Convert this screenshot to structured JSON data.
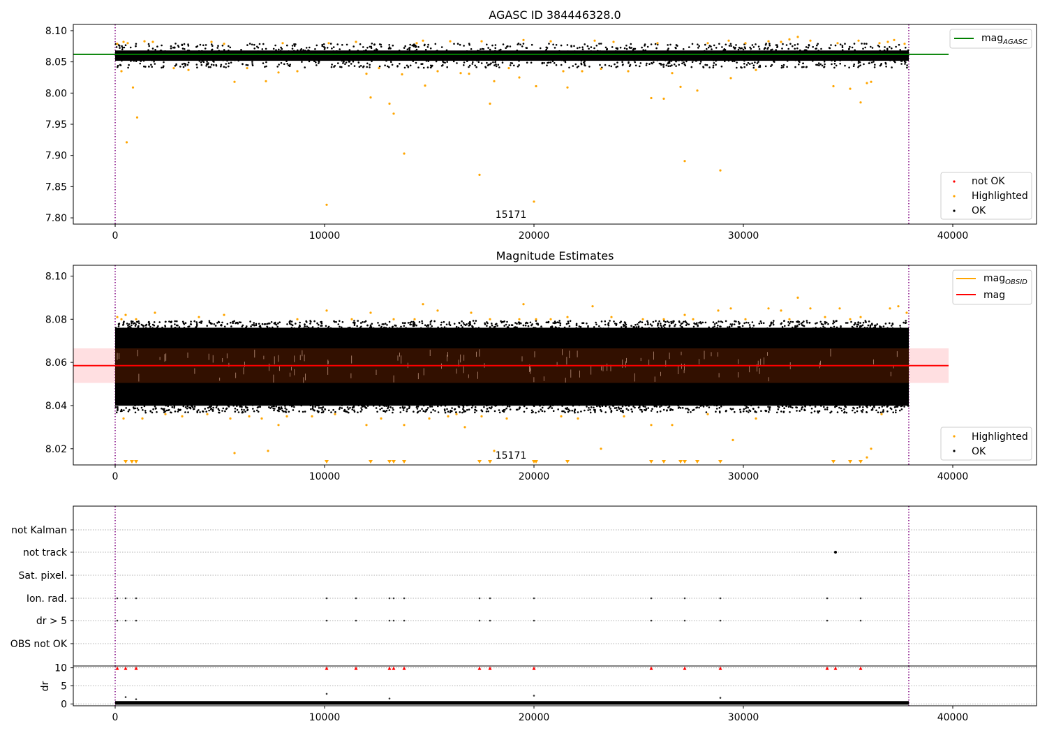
{
  "chart_data": [
    {
      "type": "scatter",
      "title": "AGASC ID 384446328.0",
      "xlim": [
        -2000,
        44000
      ],
      "ylim": [
        7.79,
        8.11
      ],
      "xticks": [
        0,
        10000,
        20000,
        30000,
        40000
      ],
      "yticks": [
        7.8,
        7.85,
        7.9,
        7.95,
        8.0,
        8.05,
        8.1
      ],
      "ytick_labels": [
        "7.80",
        "7.85",
        "7.90",
        "7.95",
        "8.00",
        "8.05",
        "8.10"
      ],
      "annotation": {
        "text": "15171",
        "x": 19000,
        "y": 7.8
      },
      "vlines": [
        0,
        37900
      ],
      "hline": {
        "name": "mag",
        "subscript": "AGASC",
        "value": 8.062,
        "x_range": [
          -2000,
          39800
        ],
        "color": "#008000"
      },
      "legend_lines": [
        {
          "name": "mag",
          "subscript": "AGASC",
          "color": "#008000"
        }
      ],
      "legend_points": [
        {
          "name": "not OK",
          "color": "#ff0000"
        },
        {
          "name": "Highlighted",
          "color": "#ffa500"
        },
        {
          "name": "OK",
          "color": "#000000"
        }
      ],
      "ok_band": {
        "x_range": [
          0,
          37900
        ],
        "y_range": [
          8.045,
          8.075
        ],
        "color": "#000000"
      },
      "highlighted_points": [
        [
          100,
          8.079
        ],
        [
          400,
          8.082
        ],
        [
          600,
          8.08
        ],
        [
          850,
          8.009
        ],
        [
          1050,
          7.961
        ],
        [
          550,
          7.921
        ],
        [
          300,
          8.035
        ],
        [
          1400,
          8.083
        ],
        [
          1800,
          8.082
        ],
        [
          2800,
          8.04
        ],
        [
          3500,
          8.037
        ],
        [
          4600,
          8.082
        ],
        [
          5200,
          8.079
        ],
        [
          5700,
          8.018
        ],
        [
          6300,
          8.04
        ],
        [
          7200,
          8.019
        ],
        [
          7800,
          8.033
        ],
        [
          8000,
          8.08
        ],
        [
          8700,
          8.035
        ],
        [
          10100,
          7.821
        ],
        [
          10200,
          8.08
        ],
        [
          11500,
          8.082
        ],
        [
          12000,
          8.031
        ],
        [
          12200,
          7.993
        ],
        [
          12600,
          8.04
        ],
        [
          13100,
          7.983
        ],
        [
          13300,
          7.967
        ],
        [
          13700,
          8.03
        ],
        [
          13800,
          7.903
        ],
        [
          14400,
          8.08
        ],
        [
          14800,
          8.012
        ],
        [
          14700,
          8.084
        ],
        [
          15400,
          8.035
        ],
        [
          16000,
          8.083
        ],
        [
          16500,
          8.032
        ],
        [
          16900,
          8.031
        ],
        [
          17400,
          7.869
        ],
        [
          17500,
          8.083
        ],
        [
          17900,
          7.983
        ],
        [
          18100,
          8.019
        ],
        [
          18800,
          8.04
        ],
        [
          19300,
          8.025
        ],
        [
          19500,
          8.085
        ],
        [
          20000,
          7.826
        ],
        [
          20100,
          8.011
        ],
        [
          20800,
          8.083
        ],
        [
          21400,
          8.035
        ],
        [
          21600,
          8.009
        ],
        [
          22300,
          8.035
        ],
        [
          22900,
          8.084
        ],
        [
          23200,
          8.039
        ],
        [
          23800,
          8.082
        ],
        [
          24500,
          8.035
        ],
        [
          25600,
          7.992
        ],
        [
          25900,
          8.08
        ],
        [
          26200,
          7.991
        ],
        [
          26600,
          8.032
        ],
        [
          27000,
          8.01
        ],
        [
          27200,
          7.891
        ],
        [
          27800,
          8.004
        ],
        [
          28300,
          8.08
        ],
        [
          28900,
          7.876
        ],
        [
          29300,
          8.084
        ],
        [
          29400,
          8.024
        ],
        [
          30100,
          8.08
        ],
        [
          30600,
          8.037
        ],
        [
          31200,
          8.083
        ],
        [
          31800,
          8.082
        ],
        [
          32200,
          8.086
        ],
        [
          32600,
          8.09
        ],
        [
          33200,
          8.084
        ],
        [
          34300,
          8.011
        ],
        [
          34500,
          8.08
        ],
        [
          35100,
          8.007
        ],
        [
          35500,
          8.084
        ],
        [
          35600,
          7.985
        ],
        [
          35900,
          8.016
        ],
        [
          36100,
          8.018
        ],
        [
          36500,
          8.08
        ],
        [
          36900,
          8.082
        ],
        [
          37200,
          8.085
        ],
        [
          37700,
          8.079
        ]
      ]
    },
    {
      "type": "scatter",
      "title": "Magnitude Estimates",
      "xlim": [
        -2000,
        44000
      ],
      "ylim": [
        8.0125,
        8.105
      ],
      "xticks": [
        0,
        10000,
        20000,
        30000,
        40000
      ],
      "yticks": [
        8.02,
        8.04,
        8.06,
        8.08,
        8.1
      ],
      "ytick_labels": [
        "8.02",
        "8.04",
        "8.06",
        "8.08",
        "8.10"
      ],
      "annotation": {
        "text": "15171",
        "x": 19000,
        "y": 8.016
      },
      "vlines": [
        0,
        37900
      ],
      "mean_line": {
        "name": "mag",
        "value": 8.0585,
        "x_range": [
          -2000,
          39800
        ],
        "color": "#ff0000"
      },
      "mean_band": {
        "y_range": [
          8.0505,
          8.0665
        ],
        "x_range": [
          -2000,
          39800
        ],
        "color": "#ffc0c4"
      },
      "obsid_band": {
        "x_range": [
          0,
          37900
        ],
        "y_range": [
          8.0505,
          8.0665
        ],
        "color": "#321000"
      },
      "ok_band": {
        "x_range": [
          0,
          37900
        ],
        "y_range": [
          8.038,
          8.078
        ],
        "color": "#000000"
      },
      "legend_lines": [
        {
          "name": "mag",
          "subscript": "OBSID",
          "color": "#ffa500"
        },
        {
          "name": "mag",
          "subscript": "",
          "color": "#ff0000"
        }
      ],
      "legend_points": [
        {
          "name": "Highlighted",
          "color": "#ffa500"
        },
        {
          "name": "OK",
          "color": "#000000"
        }
      ],
      "highlighted_points": [
        [
          100,
          8.081
        ],
        [
          300,
          8.08
        ],
        [
          500,
          8.082
        ],
        [
          400,
          8.034
        ],
        [
          1000,
          8.08
        ],
        [
          1300,
          8.034
        ],
        [
          1900,
          8.083
        ],
        [
          2400,
          8.036
        ],
        [
          3200,
          8.035
        ],
        [
          4000,
          8.081
        ],
        [
          4400,
          8.036
        ],
        [
          5200,
          8.082
        ],
        [
          5500,
          8.034
        ],
        [
          5700,
          8.018
        ],
        [
          6400,
          8.035
        ],
        [
          7000,
          8.034
        ],
        [
          7300,
          8.019
        ],
        [
          7800,
          8.031
        ],
        [
          8200,
          8.035
        ],
        [
          8700,
          8.08
        ],
        [
          9400,
          8.035
        ],
        [
          10100,
          8.084
        ],
        [
          10500,
          8.036
        ],
        [
          11300,
          8.08
        ],
        [
          12000,
          8.031
        ],
        [
          12200,
          8.083
        ],
        [
          12700,
          8.034
        ],
        [
          13300,
          8.08
        ],
        [
          13800,
          8.031
        ],
        [
          14300,
          8.08
        ],
        [
          14700,
          8.087
        ],
        [
          15000,
          8.034
        ],
        [
          15400,
          8.084
        ],
        [
          15900,
          8.035
        ],
        [
          16300,
          8.036
        ],
        [
          16700,
          8.03
        ],
        [
          17000,
          8.083
        ],
        [
          17500,
          8.035
        ],
        [
          17900,
          8.08
        ],
        [
          18100,
          8.019
        ],
        [
          18700,
          8.034
        ],
        [
          19300,
          8.08
        ],
        [
          19500,
          8.087
        ],
        [
          20100,
          8.08
        ],
        [
          20800,
          8.08
        ],
        [
          21300,
          8.035
        ],
        [
          21600,
          8.081
        ],
        [
          22100,
          8.034
        ],
        [
          22800,
          8.086
        ],
        [
          23200,
          8.02
        ],
        [
          23700,
          8.081
        ],
        [
          24300,
          8.035
        ],
        [
          25200,
          8.08
        ],
        [
          25600,
          8.031
        ],
        [
          26200,
          8.08
        ],
        [
          26600,
          8.031
        ],
        [
          27200,
          8.082
        ],
        [
          27600,
          8.08
        ],
        [
          28300,
          8.036
        ],
        [
          28800,
          8.084
        ],
        [
          29400,
          8.085
        ],
        [
          29500,
          8.024
        ],
        [
          30100,
          8.08
        ],
        [
          30600,
          8.034
        ],
        [
          31200,
          8.085
        ],
        [
          31800,
          8.084
        ],
        [
          32200,
          8.08
        ],
        [
          32600,
          8.09
        ],
        [
          33200,
          8.085
        ],
        [
          33900,
          8.081
        ],
        [
          34600,
          8.085
        ],
        [
          35100,
          8.08
        ],
        [
          35600,
          8.081
        ],
        [
          35900,
          8.016
        ],
        [
          36100,
          8.02
        ],
        [
          36600,
          8.036
        ],
        [
          37000,
          8.085
        ],
        [
          37400,
          8.086
        ],
        [
          37800,
          8.083
        ]
      ],
      "clipped_markers": [
        500,
        800,
        1000,
        10100,
        12200,
        13100,
        13300,
        13800,
        17400,
        17900,
        20000,
        20100,
        21600,
        25600,
        26200,
        27000,
        27200,
        27800,
        28900,
        34300,
        35100,
        35600
      ]
    },
    {
      "type": "scatter",
      "title": "",
      "xlim": [
        -2000,
        44000
      ],
      "xticks": [
        0,
        10000,
        20000,
        30000,
        40000
      ],
      "vlines": [
        0,
        37900
      ],
      "flag_labels": [
        "not Kalman",
        "not track",
        "Sat. pixel.",
        "Ion. rad.",
        "dr > 5",
        "OBS not OK"
      ],
      "flag_times": [
        100,
        500,
        1000,
        10100,
        11500,
        13100,
        13300,
        13800,
        17400,
        17900,
        20000,
        25600,
        27200,
        28900,
        34000,
        35600
      ],
      "not_track_times": [
        34400
      ],
      "dr_ylabel": "dr",
      "dr_yticks": [
        0,
        5,
        10
      ],
      "dr_ytick_labels": [
        "0",
        "5",
        "10"
      ],
      "dr_ylim": [
        -0.5,
        10.5
      ],
      "dr_clipped_times": [
        100,
        500,
        1000,
        10100,
        11500,
        13100,
        13300,
        13800,
        17400,
        17900,
        20000,
        25600,
        27200,
        28900,
        34000,
        34400,
        35600
      ],
      "dr_high_points": [
        [
          500,
          1.9
        ],
        [
          1000,
          1.3
        ],
        [
          10100,
          2.8
        ],
        [
          13100,
          1.5
        ],
        [
          20000,
          2.3
        ],
        [
          28900,
          1.7
        ]
      ]
    }
  ]
}
